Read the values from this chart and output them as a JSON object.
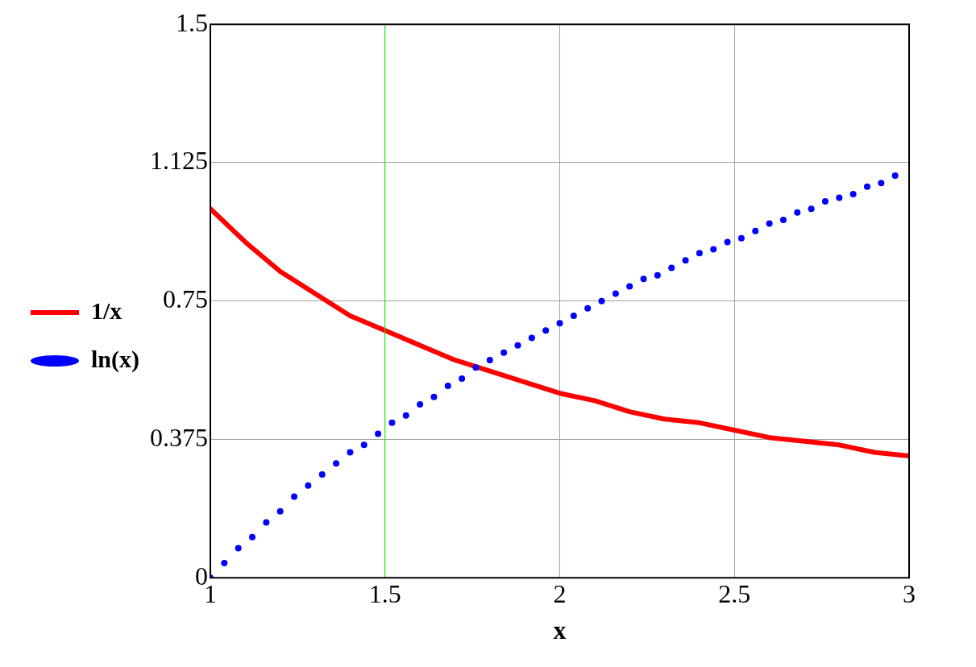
{
  "chart_data": {
    "type": "line",
    "xlabel": "x",
    "xlim": [
      1,
      3
    ],
    "xticks": [
      1,
      1.5,
      2,
      2.5,
      3
    ],
    "ylim": [
      0,
      1.5
    ],
    "yticks": [
      0,
      0.375,
      0.75,
      1.125,
      1.5
    ],
    "grid": true,
    "legend": "left",
    "ref_lines": [
      {
        "axis": "x",
        "value": 1.5,
        "color": "#00ff00"
      }
    ],
    "series": [
      {
        "name": "1/x",
        "color": "#ff0000",
        "marker": "none",
        "line_style": "solid",
        "x": [
          1,
          1.1,
          1.2,
          1.3,
          1.4,
          1.5,
          1.6,
          1.7,
          1.8,
          1.9,
          2,
          2.1,
          2.2,
          2.3,
          2.4,
          2.5,
          2.6,
          2.7,
          2.8,
          2.9,
          3
        ],
        "values": [
          1,
          0.91,
          0.83,
          0.77,
          0.71,
          0.67,
          0.63,
          0.59,
          0.56,
          0.53,
          0.5,
          0.48,
          0.45,
          0.43,
          0.42,
          0.4,
          0.38,
          0.37,
          0.36,
          0.34,
          0.33
        ]
      },
      {
        "name": "ln(x)",
        "type": "scatter",
        "color": "#0000ff",
        "marker": "circle",
        "x": [
          1,
          1.04,
          1.08,
          1.12,
          1.16,
          1.2,
          1.24,
          1.28,
          1.32,
          1.36,
          1.4,
          1.44,
          1.48,
          1.52,
          1.56,
          1.6,
          1.64,
          1.68,
          1.72,
          1.76,
          1.8,
          1.84,
          1.88,
          1.92,
          1.96,
          2,
          2.04,
          2.08,
          2.12,
          2.16,
          2.2,
          2.24,
          2.28,
          2.32,
          2.36,
          2.4,
          2.44,
          2.48,
          2.52,
          2.56,
          2.6,
          2.64,
          2.68,
          2.72,
          2.76,
          2.8,
          2.84,
          2.88,
          2.92,
          2.96
        ],
        "values": [
          0,
          0.04,
          0.08,
          0.11,
          0.15,
          0.18,
          0.22,
          0.25,
          0.28,
          0.31,
          0.34,
          0.36,
          0.39,
          0.42,
          0.44,
          0.47,
          0.49,
          0.52,
          0.54,
          0.57,
          0.59,
          0.61,
          0.63,
          0.65,
          0.67,
          0.69,
          0.71,
          0.73,
          0.75,
          0.77,
          0.79,
          0.81,
          0.82,
          0.84,
          0.86,
          0.88,
          0.89,
          0.91,
          0.92,
          0.94,
          0.96,
          0.97,
          0.99,
          1.0,
          1.02,
          1.03,
          1.04,
          1.06,
          1.07,
          1.09
        ]
      }
    ]
  }
}
